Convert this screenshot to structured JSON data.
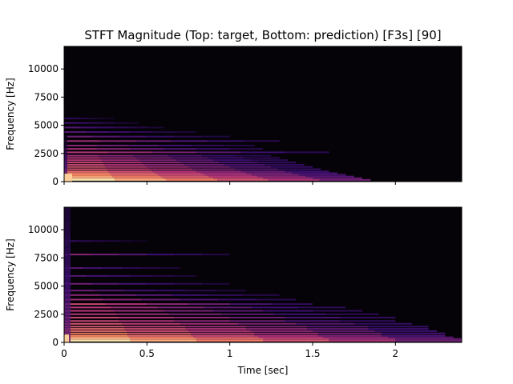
{
  "chart_data": {
    "type": "heatmap",
    "title": "STFT Magnitude (Top: target, Bottom: prediction) [F3s] [90]",
    "colormap": "magma",
    "background_color": "#050208",
    "xlabel": "Time [sec]",
    "xlim": [
      0,
      2.4
    ],
    "xticks": [
      0,
      0.5,
      1,
      1.5,
      2
    ],
    "xtick_labels": [
      "0",
      "0.5",
      "1",
      "1.5",
      "2"
    ],
    "panels": [
      {
        "name": "target",
        "ylabel": "Frequency [Hz]",
        "ylim": [
          0,
          12000
        ],
        "yticks": [
          0,
          2500,
          5000,
          7500,
          10000
        ],
        "ytick_labels": [
          "0",
          "2500",
          "5000",
          "7500",
          "10000"
        ],
        "show_xtick_labels": false,
        "onset_column": false,
        "harmonics": [
          {
            "freq": 150,
            "end": 1.85,
            "level": 0.95
          },
          {
            "freq": 300,
            "end": 1.8,
            "level": 0.9
          },
          {
            "freq": 450,
            "end": 1.75,
            "level": 0.8
          },
          {
            "freq": 600,
            "end": 1.7,
            "level": 0.75
          },
          {
            "freq": 750,
            "end": 1.65,
            "level": 0.7
          },
          {
            "freq": 900,
            "end": 1.6,
            "level": 0.65
          },
          {
            "freq": 1100,
            "end": 1.55,
            "level": 0.6
          },
          {
            "freq": 1300,
            "end": 1.5,
            "level": 0.6
          },
          {
            "freq": 1500,
            "end": 1.45,
            "level": 0.55
          },
          {
            "freq": 1700,
            "end": 1.4,
            "level": 0.55
          },
          {
            "freq": 1900,
            "end": 1.35,
            "level": 0.5
          },
          {
            "freq": 2100,
            "end": 1.3,
            "level": 0.5
          },
          {
            "freq": 2300,
            "end": 1.25,
            "level": 0.45
          },
          {
            "freq": 2600,
            "end": 1.6,
            "level": 0.5
          },
          {
            "freq": 2900,
            "end": 1.2,
            "level": 0.45
          },
          {
            "freq": 3200,
            "end": 1.15,
            "level": 0.4
          },
          {
            "freq": 3600,
            "end": 1.3,
            "level": 0.45
          },
          {
            "freq": 4000,
            "end": 1.0,
            "level": 0.35
          },
          {
            "freq": 4400,
            "end": 0.8,
            "level": 0.3
          },
          {
            "freq": 4800,
            "end": 0.6,
            "level": 0.3
          },
          {
            "freq": 5200,
            "end": 0.45,
            "level": 0.25
          },
          {
            "freq": 5600,
            "end": 0.3,
            "level": 0.2
          }
        ]
      },
      {
        "name": "prediction",
        "ylabel": "Frequency [Hz]",
        "ylim": [
          0,
          12000
        ],
        "yticks": [
          0,
          2500,
          5000,
          7500,
          10000
        ],
        "ytick_labels": [
          "0",
          "2500",
          "5000",
          "7500",
          "10000"
        ],
        "show_xtick_labels": true,
        "onset_column": true,
        "harmonics": [
          {
            "freq": 150,
            "end": 2.4,
            "level": 0.95
          },
          {
            "freq": 300,
            "end": 2.4,
            "level": 0.9
          },
          {
            "freq": 450,
            "end": 2.35,
            "level": 0.8
          },
          {
            "freq": 600,
            "end": 2.3,
            "level": 0.75
          },
          {
            "freq": 800,
            "end": 2.3,
            "level": 0.7
          },
          {
            "freq": 1000,
            "end": 2.25,
            "level": 0.65
          },
          {
            "freq": 1200,
            "end": 2.2,
            "level": 0.65
          },
          {
            "freq": 1400,
            "end": 2.2,
            "level": 0.6
          },
          {
            "freq": 1650,
            "end": 2.1,
            "level": 0.6
          },
          {
            "freq": 1900,
            "end": 2.0,
            "level": 0.55
          },
          {
            "freq": 2200,
            "end": 2.0,
            "level": 0.55
          },
          {
            "freq": 2500,
            "end": 1.9,
            "level": 0.5
          },
          {
            "freq": 2800,
            "end": 1.8,
            "level": 0.5
          },
          {
            "freq": 3100,
            "end": 1.7,
            "level": 0.5
          },
          {
            "freq": 3400,
            "end": 1.5,
            "level": 0.55
          },
          {
            "freq": 3800,
            "end": 1.4,
            "level": 0.45
          },
          {
            "freq": 4200,
            "end": 1.3,
            "level": 0.4
          },
          {
            "freq": 4600,
            "end": 1.1,
            "level": 0.35
          },
          {
            "freq": 5200,
            "end": 1.0,
            "level": 0.35
          },
          {
            "freq": 5900,
            "end": 0.8,
            "level": 0.3
          },
          {
            "freq": 6600,
            "end": 0.7,
            "level": 0.3
          },
          {
            "freq": 7800,
            "end": 1.0,
            "level": 0.4
          },
          {
            "freq": 9000,
            "end": 0.5,
            "level": 0.2
          }
        ]
      }
    ]
  }
}
